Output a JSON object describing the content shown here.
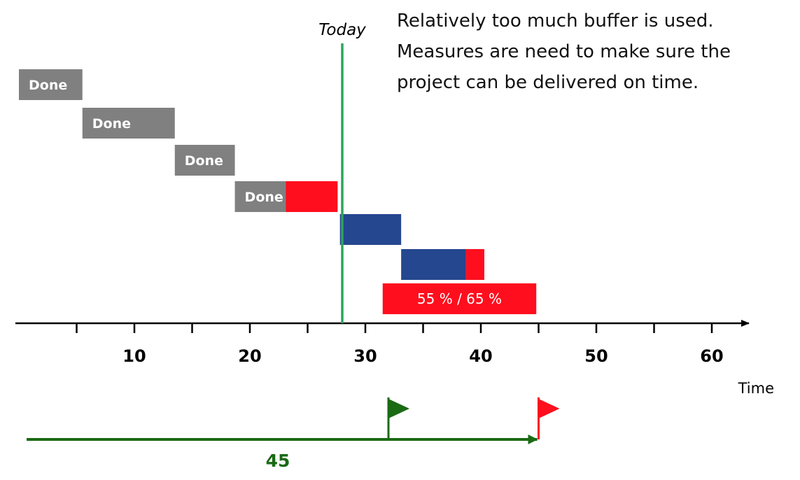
{
  "note": {
    "lines": [
      "Relatively too much buffer is used.",
      "Measures are need to make sure the",
      "project can be delivered on time."
    ]
  },
  "colors": {
    "done": "#808080",
    "planned": "#25478f",
    "buffer_used": "#ff0e1e",
    "today_line": "#2ca55a",
    "deadline_arrow": "#1a6a14",
    "axis": "#000000"
  },
  "chart_data": {
    "type": "bar",
    "subtype": "gantt",
    "xlabel": "Time",
    "xlim": [
      0,
      62
    ],
    "xticks": [
      10,
      20,
      30,
      40,
      50,
      60
    ],
    "grid": false,
    "today": {
      "label": "Today",
      "x": 28
    },
    "tasks": [
      {
        "label": "Done",
        "start": 0,
        "done_end": 5.5
      },
      {
        "label": "Done",
        "start": 5.5,
        "done_end": 13.5
      },
      {
        "label": "Done",
        "start": 13.5,
        "done_end": 18.7
      },
      {
        "label": "Done",
        "start": 18.7,
        "done_end": 23.1,
        "buffer_end": 27.6
      },
      {
        "label": "",
        "start": 27.8,
        "planned_end": 33.1
      },
      {
        "label": "",
        "start": 33.1,
        "planned_end": 38.7,
        "buffer_end": 40.3
      }
    ],
    "buffer_status": {
      "label": "55 % / 65 %",
      "start": 31.5,
      "end": 44.8
    },
    "timeline": {
      "value_label": "45",
      "end": 45,
      "flags": [
        {
          "x": 32,
          "color": "#1a6a14"
        },
        {
          "x": 45,
          "color": "#ff0e1e"
        }
      ]
    }
  }
}
